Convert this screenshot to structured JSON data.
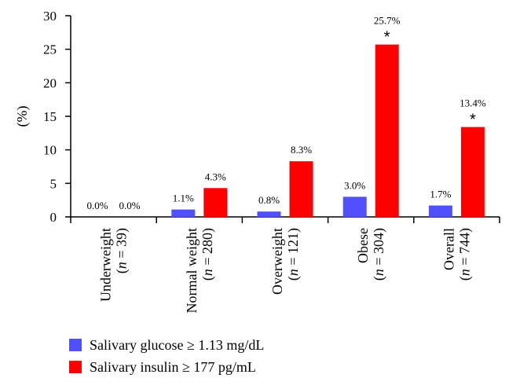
{
  "chart_data": {
    "type": "bar",
    "title": "",
    "xlabel": "",
    "ylabel": "(%)",
    "ylim": [
      0,
      30
    ],
    "yticks": [
      "0",
      "5",
      "10",
      "15",
      "20",
      "25",
      "30"
    ],
    "categories": [
      {
        "name": "Underweight",
        "n_prefix": "(",
        "n_var": "n",
        "n_suffix": " = 39)"
      },
      {
        "name": "Normal weight",
        "n_prefix": "(",
        "n_var": "n",
        "n_suffix": " = 280)"
      },
      {
        "name": "Overweight",
        "n_prefix": "(",
        "n_var": "n",
        "n_suffix": " = 121)"
      },
      {
        "name": "Obese",
        "n_prefix": "(",
        "n_var": "n",
        "n_suffix": " = 304)"
      },
      {
        "name": "Overall",
        "n_prefix": "(",
        "n_var": "n",
        "n_suffix": " = 744)"
      }
    ],
    "series": [
      {
        "name": "Salivary glucose ≥ 1.13 mg/dL",
        "color": "#5050ff",
        "values": [
          0.0,
          1.1,
          0.8,
          3.0,
          1.7
        ],
        "labels": [
          "0.0%",
          "1.1%",
          "0.8%",
          "3.0%",
          "1.7%"
        ],
        "significance": [
          "",
          "",
          "",
          "",
          ""
        ]
      },
      {
        "name": "Salivary insulin ≥ 177 pg/mL",
        "color": "#ff0000",
        "values": [
          0.0,
          4.3,
          8.3,
          25.7,
          13.4
        ],
        "labels": [
          "0.0%",
          "4.3%",
          "8.3%",
          "25.7%",
          "13.4%"
        ],
        "significance": [
          "",
          "",
          "",
          "*",
          "*"
        ]
      }
    ],
    "legend": "bottom-left",
    "grid": false
  }
}
